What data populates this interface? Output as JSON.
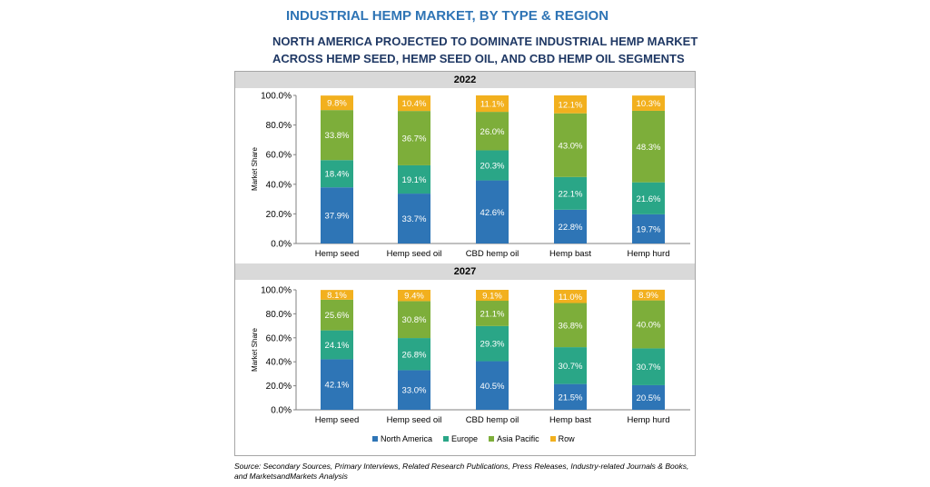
{
  "header": {
    "title": "INDUSTRIAL HEMP MARKET, BY TYPE & REGION",
    "subtitle_line1": "NORTH AMERICA PROJECTED TO DOMINATE INDUSTRIAL HEMP MARKET",
    "subtitle_line2": "ACROSS HEMP SEED, HEMP SEED OIL, AND CBD HEMP OIL SEGMENTS"
  },
  "source": {
    "line1": "Source: Secondary Sources, Primary Interviews, Related Research Publications, Press Releases, Industry-related Journals & Books,",
    "line2": "and MarketsandMarkets Analysis"
  },
  "colors": {
    "North America": "#2e75b6",
    "Europe": "#2aa687",
    "Asia Pacific": "#7dae3a",
    "Row": "#f2b01e"
  },
  "legend": [
    "North America",
    "Europe",
    "Asia Pacific",
    "Row"
  ],
  "chart_data": [
    {
      "type": "bar",
      "stacked": true,
      "title": "2022",
      "ylabel": "Market Share",
      "ylim": [
        0,
        100
      ],
      "yticks": [
        "0.0%",
        "20.0%",
        "40.0%",
        "60.0%",
        "80.0%",
        "100.0%"
      ],
      "categories": [
        "Hemp seed",
        "Hemp seed oil",
        "CBD hemp oil",
        "Hemp bast",
        "Hemp hurd"
      ],
      "series": [
        {
          "name": "North America",
          "values": [
            37.9,
            33.7,
            42.6,
            22.8,
            19.7
          ]
        },
        {
          "name": "Europe",
          "values": [
            18.4,
            19.1,
            20.3,
            22.1,
            21.6
          ]
        },
        {
          "name": "Asia Pacific",
          "values": [
            33.8,
            36.7,
            26.0,
            43.0,
            48.3
          ]
        },
        {
          "name": "Row",
          "values": [
            9.8,
            10.4,
            11.1,
            12.1,
            10.3
          ]
        }
      ]
    },
    {
      "type": "bar",
      "stacked": true,
      "title": "2027",
      "ylabel": "Market Share",
      "ylim": [
        0,
        100
      ],
      "yticks": [
        "0.0%",
        "20.0%",
        "40.0%",
        "60.0%",
        "80.0%",
        "100.0%"
      ],
      "categories": [
        "Hemp seed",
        "Hemp seed oil",
        "CBD hemp oil",
        "Hemp bast",
        "Hemp hurd"
      ],
      "series": [
        {
          "name": "North America",
          "values": [
            42.1,
            33.0,
            40.5,
            21.5,
            20.5
          ]
        },
        {
          "name": "Europe",
          "values": [
            24.1,
            26.8,
            29.3,
            30.7,
            30.7
          ]
        },
        {
          "name": "Asia Pacific",
          "values": [
            25.6,
            30.8,
            21.1,
            36.8,
            40.0
          ]
        },
        {
          "name": "Row",
          "values": [
            8.1,
            9.4,
            9.1,
            11.0,
            8.9
          ]
        }
      ]
    }
  ]
}
